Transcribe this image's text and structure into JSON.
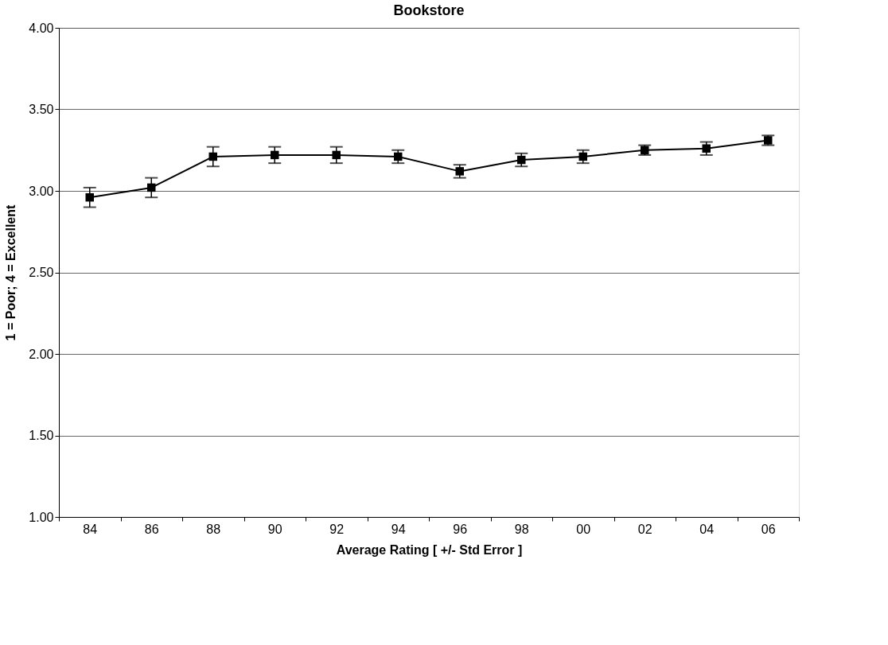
{
  "chart_data": {
    "type": "line",
    "title": "Bookstore",
    "xlabel": "Average Rating [ +/- Std Error ]",
    "ylabel": "1 = Poor;  4 = Excellent",
    "categories": [
      "84",
      "86",
      "88",
      "90",
      "92",
      "94",
      "96",
      "98",
      "00",
      "02",
      "04",
      "06"
    ],
    "series": [
      {
        "color": "#000000",
        "values": [
          2.96,
          3.02,
          3.21,
          3.22,
          3.22,
          3.21,
          3.12,
          3.19,
          3.21,
          3.25,
          3.26,
          3.31
        ],
        "errors": [
          0.06,
          0.06,
          0.06,
          0.05,
          0.05,
          0.04,
          0.04,
          0.04,
          0.04,
          0.03,
          0.04,
          0.03
        ]
      }
    ],
    "ylim": [
      1.0,
      4.0
    ],
    "yticks": [
      {
        "value": 1.0,
        "label": "1.00"
      },
      {
        "value": 1.5,
        "label": "1.50"
      },
      {
        "value": 2.0,
        "label": "2.00"
      },
      {
        "value": 2.5,
        "label": "2.50"
      },
      {
        "value": 3.0,
        "label": "3.00"
      },
      {
        "value": 3.5,
        "label": "3.50"
      },
      {
        "value": 4.0,
        "label": "4.00"
      }
    ],
    "grid": "y",
    "marker": "square",
    "line_style": "solid"
  }
}
